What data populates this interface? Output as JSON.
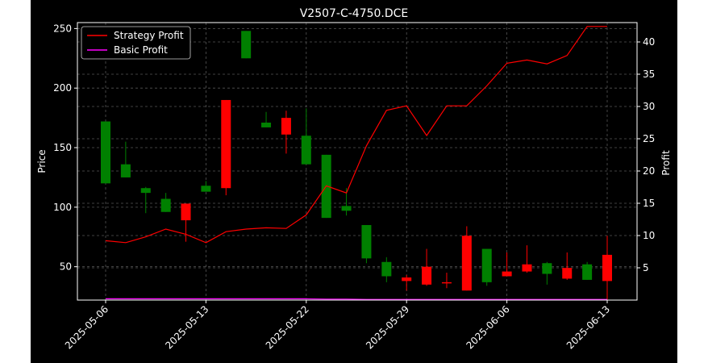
{
  "chart_data": {
    "type": "candlestick+line",
    "title": "V2507-C-4750.DCE",
    "xlabel": "",
    "ylabel_left": "Price",
    "ylabel_right": "Profit",
    "ylim_left": [
      22,
      255
    ],
    "ylim_right": [
      0,
      43
    ],
    "yticks_left": [
      50,
      100,
      150,
      200,
      250
    ],
    "yticks_right": [
      5,
      10,
      15,
      20,
      25,
      30,
      35,
      40
    ],
    "xticks": [
      "2025-05-06",
      "2025-05-13",
      "2025-05-22",
      "2025-05-29",
      "2025-06-06",
      "2025-06-13"
    ],
    "grid": true,
    "legend_position": "top-left",
    "colors": {
      "background": "#000000",
      "axes": "#ffffff",
      "grid": "#555555",
      "up": "#008000",
      "down": "#ff0000",
      "strategy_profit": "#ff0000",
      "basic_profit": "#ff00ff"
    },
    "candles": [
      {
        "open": 120,
        "close": 172,
        "high": 172,
        "low": 120
      },
      {
        "open": 125,
        "close": 136,
        "high": 155,
        "low": 125
      },
      {
        "open": 112,
        "close": 116,
        "high": 117,
        "low": 95
      },
      {
        "open": 96,
        "close": 107,
        "high": 112,
        "low": 96
      },
      {
        "open": 103,
        "close": 89,
        "high": 103,
        "low": 71
      },
      {
        "open": 113,
        "close": 118,
        "high": 122,
        "low": 113
      },
      {
        "open": 190,
        "close": 116,
        "high": 190,
        "low": 110
      },
      {
        "open": 225,
        "close": 248,
        "high": 248,
        "low": 225
      },
      {
        "open": 167,
        "close": 171,
        "high": 180,
        "low": 167
      },
      {
        "open": 175,
        "close": 161,
        "high": 181,
        "low": 145
      },
      {
        "open": 136,
        "close": 160,
        "high": 183,
        "low": 136
      },
      {
        "open": 91,
        "close": 144,
        "high": 144,
        "low": 91
      },
      {
        "open": 97,
        "close": 101,
        "high": 116,
        "low": 93
      },
      {
        "open": 57,
        "close": 85,
        "high": 85,
        "low": 53
      },
      {
        "open": 42,
        "close": 54,
        "high": 58,
        "low": 37
      },
      {
        "open": 41,
        "close": 38,
        "high": 43,
        "low": 30
      },
      {
        "open": 50,
        "close": 35,
        "high": 65,
        "low": 34
      },
      {
        "open": 37,
        "close": 36,
        "high": 45,
        "low": 32
      },
      {
        "open": 76,
        "close": 30,
        "high": 84,
        "low": 30
      },
      {
        "open": 37,
        "close": 65,
        "high": 65,
        "low": 34
      },
      {
        "open": 46,
        "close": 42,
        "high": 62,
        "low": 42
      },
      {
        "open": 52,
        "close": 46,
        "high": 68,
        "low": 45
      },
      {
        "open": 44,
        "close": 53,
        "high": 54,
        "low": 35
      },
      {
        "open": 49,
        "close": 40,
        "high": 62,
        "low": 39
      },
      {
        "open": 39,
        "close": 52,
        "high": 54,
        "low": 39
      },
      {
        "open": 60,
        "close": 38,
        "high": 76,
        "low": 20
      }
    ],
    "series": [
      {
        "name": "Strategy Profit",
        "values": [
          9.2,
          8.9,
          9.8,
          11.0,
          10.2,
          8.9,
          10.6,
          11.0,
          11.2,
          11.1,
          13.2,
          17.7,
          16.6,
          23.9,
          29.4,
          30.1,
          25.5,
          30.1,
          30.1,
          33.2,
          36.7,
          37.2,
          36.6,
          37.9,
          42.4,
          42.4
        ]
      },
      {
        "name": "Basic Profit",
        "values": [
          0.2,
          0.2,
          0.2,
          0.2,
          0.2,
          0.2,
          0.2,
          0.2,
          0.2,
          0.2,
          0.2,
          0.15,
          0.15,
          0.1,
          0.1,
          0.1,
          0.1,
          0.1,
          0.1,
          0.1,
          0.1,
          0.1,
          0.1,
          0.1,
          0.1,
          0.1
        ]
      }
    ]
  }
}
